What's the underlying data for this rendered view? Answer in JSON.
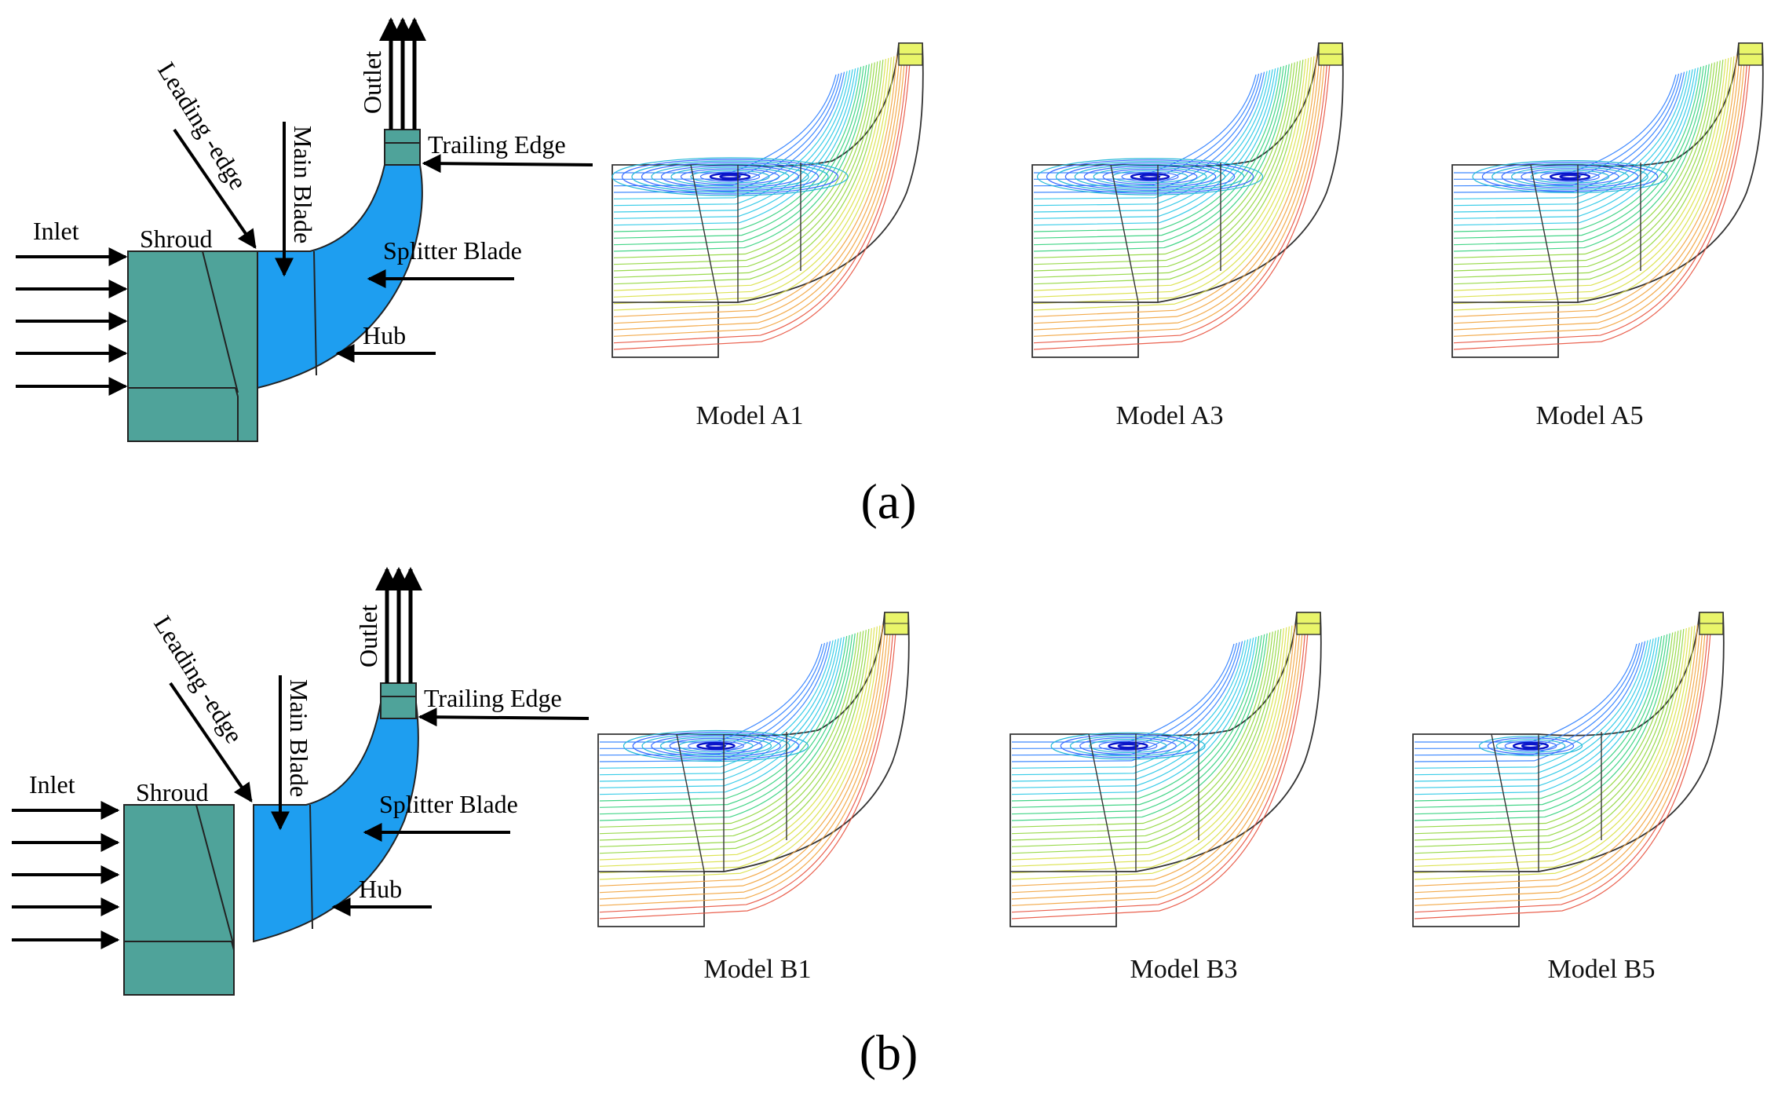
{
  "colors": {
    "inlet_block": "#4fa39a",
    "blade_passage": "#1e9ef0",
    "outline": "#222222",
    "streamline_palette": [
      "#1010d8",
      "#2a7cff",
      "#22c7e6",
      "#2fd07a",
      "#8fd63a",
      "#d9e043",
      "#f2a23a",
      "#e8503c"
    ]
  },
  "schematic_labels": {
    "inlet": "Inlet",
    "shroud": "Shroud",
    "leading_edge": "Leading -edge",
    "main_blade": "Main Blade",
    "outlet": "Outlet",
    "trailing_edge": "Trailing Edge",
    "splitter_blade": "Splitter Blade",
    "hub": "Hub"
  },
  "panels": [
    {
      "panel_label": "(a)",
      "models": [
        {
          "name": "Model A1",
          "vortex_strength": 1.0
        },
        {
          "name": "Model A3",
          "vortex_strength": 0.95
        },
        {
          "name": "Model A5",
          "vortex_strength": 0.8
        }
      ]
    },
    {
      "panel_label": "(b)",
      "models": [
        {
          "name": "Model B1",
          "vortex_strength": 0.75
        },
        {
          "name": "Model B3",
          "vortex_strength": 0.6
        },
        {
          "name": "Model B5",
          "vortex_strength": 0.35
        }
      ]
    }
  ]
}
